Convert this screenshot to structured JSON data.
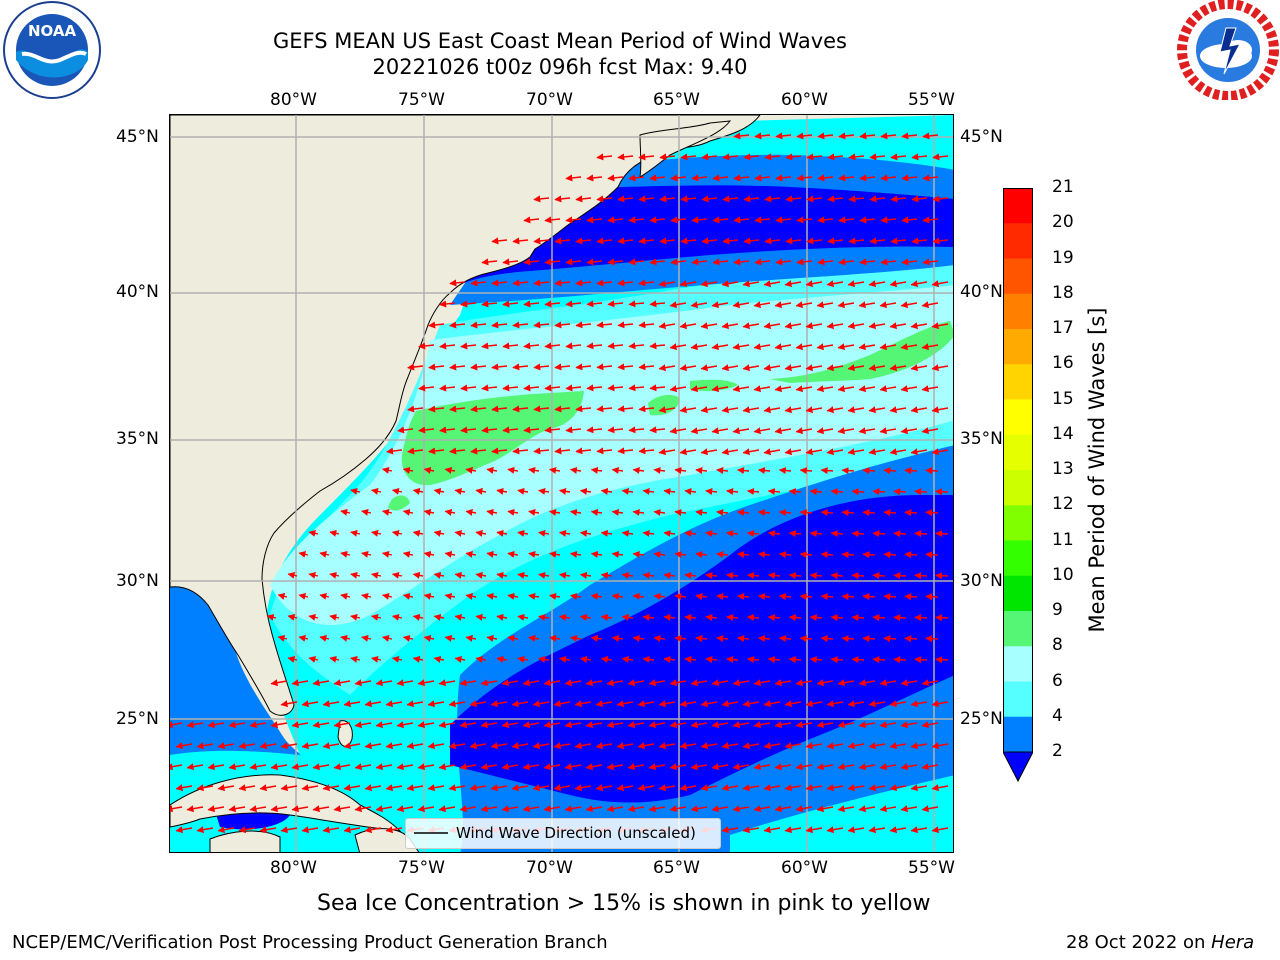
{
  "header": {
    "title_line1": "GEFS MEAN US East Coast Mean Period of Wind Waves",
    "title_line2": "20221026 t00z 096h fcst   Max: 9.40"
  },
  "logos": {
    "left_text": "NOAA",
    "left_ring": "NATIONAL OCEANIC AND ATMOSPHERIC ADMINISTRATION · U.S. DEPARTMENT OF COMMERCE",
    "right_ring": "NATIONAL WEATHER SERVICE"
  },
  "map": {
    "lon_ticks": [
      "80°W",
      "75°W",
      "70°W",
      "65°W",
      "60°W",
      "55°W"
    ],
    "lat_ticks": [
      "45°N",
      "40°N",
      "35°N",
      "30°N",
      "25°N"
    ],
    "legend_label": "Wind Wave Direction (unscaled)",
    "arrow_color": "#ff0000",
    "land_color": "#eeecdc",
    "grid_color": "#b0b0b0"
  },
  "colorbar": {
    "title": "Mean Period of Wind Waves [s]",
    "labels": [
      "21",
      "20",
      "19",
      "18",
      "17",
      "16",
      "15",
      "14",
      "13",
      "12",
      "11",
      "10",
      "9",
      "8",
      "6",
      "4",
      "2"
    ],
    "colors": [
      "#ff0000",
      "#ff2a00",
      "#ff5500",
      "#ff7f00",
      "#ffaa00",
      "#ffd400",
      "#ffff00",
      "#e6ff00",
      "#ccff00",
      "#80ff00",
      "#33ff00",
      "#00e600",
      "#55f575",
      "#a8ffff",
      "#55ffff",
      "#00ffff",
      "#0080ff"
    ],
    "under_color": "#0000ff"
  },
  "footer": {
    "caption": "Sea Ice Concentration > 15% is shown in pink to yellow",
    "left": "NCEP/EMC/Verification Post Processing Product Generation Branch",
    "right_date": "28 Oct 2022 on",
    "right_host": "Hera"
  }
}
